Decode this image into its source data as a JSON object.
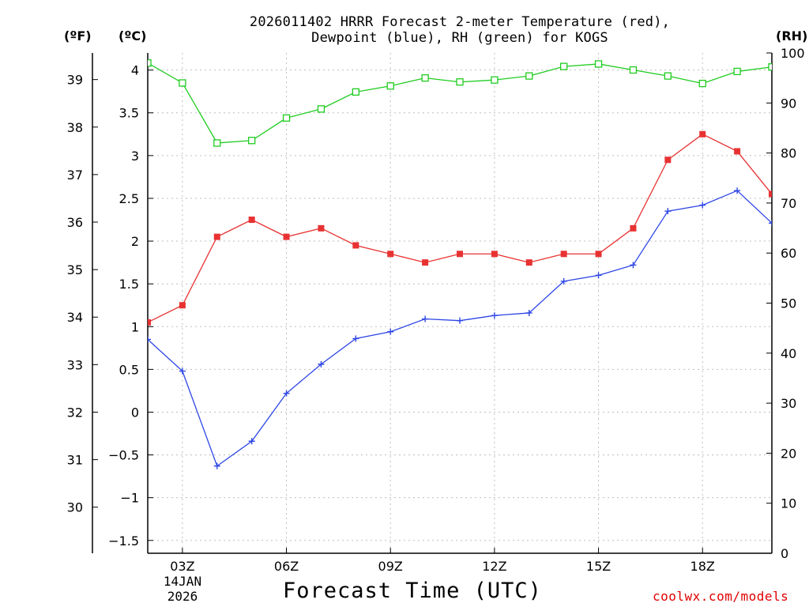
{
  "header": {
    "title_line1": "2026011402 HRRR Forecast 2-meter Temperature (red),",
    "title_line2": "Dewpoint (blue), RH (green) for KOGS"
  },
  "units": {
    "f": "(ºF)",
    "c": "(ºC)",
    "rh": "(RH)"
  },
  "axis": {
    "xlabel": "Forecast Time (UTC)",
    "date_day": "14JAN",
    "date_year": "2026"
  },
  "credit": "coolwx.com/models",
  "colors": {
    "temperature": "#e83232",
    "dewpoint": "#2d46e6",
    "rh": "#1fcc1f",
    "grid": "#bdbdbd"
  },
  "chart_data": {
    "type": "line",
    "title": "2026011402 HRRR Forecast 2-meter Temperature (red), Dewpoint (blue), RH (green) for KOGS",
    "xlabel": "Forecast Time (UTC)",
    "x": [
      2,
      3,
      4,
      5,
      6,
      7,
      8,
      9,
      10,
      11,
      12,
      13,
      14,
      15,
      16,
      17,
      18,
      19,
      20
    ],
    "x_ticks": [
      3,
      6,
      9,
      12,
      15,
      18
    ],
    "x_tick_labels": [
      "03Z",
      "06Z",
      "09Z",
      "12Z",
      "15Z",
      "18Z"
    ],
    "xlim": [
      2,
      20
    ],
    "ylim_c": [
      -1.65,
      4.2
    ],
    "y_ticks_c": [
      -1.5,
      -1,
      -0.5,
      0,
      0.5,
      1,
      1.5,
      2,
      2.5,
      3,
      3.5,
      4
    ],
    "y_tick_labels_c": [
      "−1.5",
      "−1",
      "−0.5",
      "0",
      "0.5",
      "1",
      "1.5",
      "2",
      "2.5",
      "3",
      "3.5",
      "4"
    ],
    "y_ticks_f": [
      30,
      31,
      32,
      33,
      34,
      35,
      36,
      37,
      38,
      39
    ],
    "ylim_rh": [
      0,
      100
    ],
    "y_ticks_rh": [
      0,
      10,
      20,
      30,
      40,
      50,
      60,
      70,
      80,
      90,
      100
    ],
    "series": [
      {
        "name": "Temperature",
        "axis": "c",
        "marker": "filled-square",
        "values": [
          1.05,
          1.25,
          2.05,
          2.25,
          2.05,
          2.15,
          1.95,
          1.85,
          1.75,
          1.85,
          1.85,
          1.75,
          1.85,
          1.85,
          2.15,
          2.95,
          3.25,
          3.05,
          2.55
        ]
      },
      {
        "name": "Dewpoint",
        "axis": "c",
        "marker": "plus",
        "values": [
          0.85,
          0.48,
          -0.63,
          -0.34,
          0.22,
          0.56,
          0.86,
          0.94,
          1.09,
          1.07,
          1.13,
          1.16,
          1.53,
          1.6,
          1.72,
          2.35,
          2.42,
          2.59,
          2.21
        ]
      },
      {
        "name": "RH",
        "axis": "rh",
        "marker": "open-square",
        "values": [
          98.0,
          94.0,
          82.0,
          82.5,
          87.0,
          88.8,
          92.2,
          93.4,
          95.0,
          94.2,
          94.6,
          95.4,
          97.3,
          97.8,
          96.6,
          95.4,
          93.9,
          96.3,
          97.2
        ]
      }
    ]
  }
}
